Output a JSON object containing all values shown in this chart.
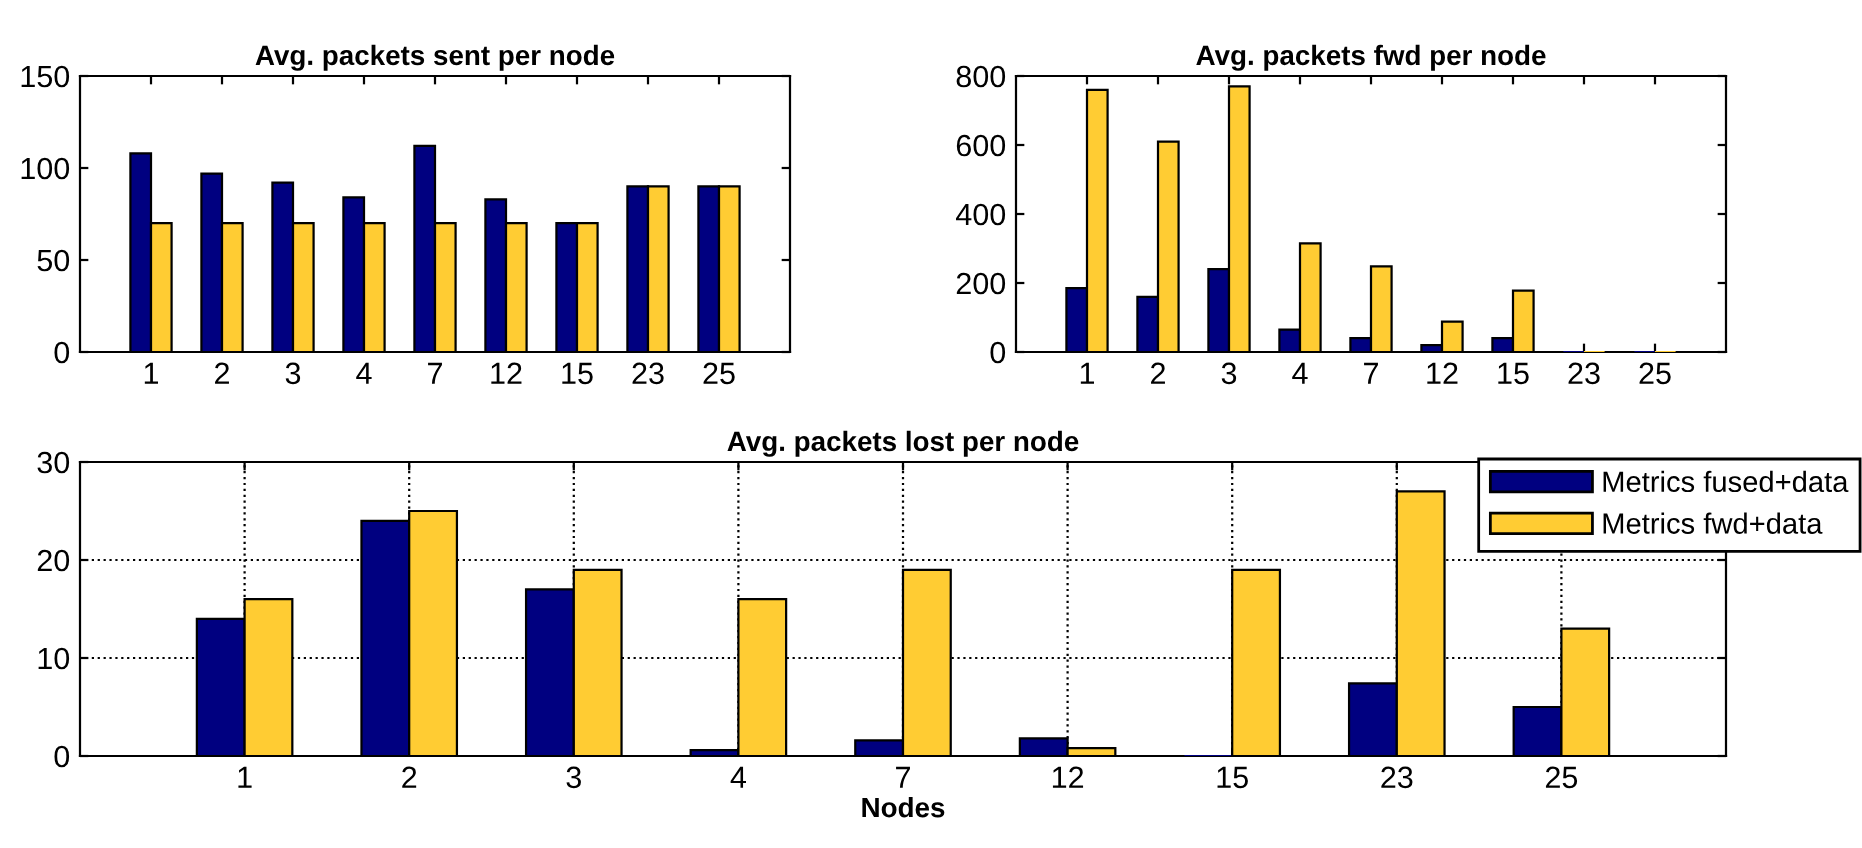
{
  "chart_data": [
    {
      "type": "bar",
      "title": "Avg. packets sent per node",
      "categories": [
        "1",
        "2",
        "3",
        "4",
        "7",
        "12",
        "15",
        "23",
        "25"
      ],
      "ylim": [
        0,
        150
      ],
      "yticks": [
        0,
        50,
        100,
        150
      ],
      "grid": false,
      "legend": false,
      "series": [
        {
          "color": "#000080",
          "values": [
            108,
            97,
            92,
            84,
            112,
            83,
            70,
            90,
            90
          ]
        },
        {
          "color": "#ffcc33",
          "values": [
            70,
            70,
            70,
            70,
            70,
            70,
            70,
            90,
            90
          ]
        }
      ]
    },
    {
      "type": "bar",
      "title": "Avg. packets fwd per node",
      "categories": [
        "1",
        "2",
        "3",
        "4",
        "7",
        "12",
        "15",
        "23",
        "25"
      ],
      "ylim": [
        0,
        800
      ],
      "yticks": [
        0,
        200,
        400,
        600,
        800
      ],
      "grid": false,
      "legend": false,
      "series": [
        {
          "color": "#000080",
          "values": [
            185,
            160,
            240,
            65,
            40,
            20,
            40,
            0,
            0
          ]
        },
        {
          "color": "#ffcc33",
          "values": [
            760,
            610,
            770,
            315,
            248,
            88,
            178,
            0,
            0
          ]
        }
      ]
    },
    {
      "type": "bar",
      "title": "Avg. packets lost per node",
      "xlabel": "Nodes",
      "categories": [
        "1",
        "2",
        "3",
        "4",
        "7",
        "12",
        "15",
        "23",
        "25"
      ],
      "ylim": [
        0,
        30
      ],
      "yticks": [
        0,
        10,
        20,
        30
      ],
      "grid": true,
      "legend": "top right",
      "series": [
        {
          "name": "Metrics fused+data",
          "color": "#000080",
          "values": [
            14,
            24,
            17,
            0.6,
            1.6,
            1.8,
            0,
            7.4,
            5
          ]
        },
        {
          "name": "Metrics fwd+data",
          "color": "#ffcc33",
          "values": [
            16,
            25,
            19,
            16,
            19,
            0.8,
            19,
            27,
            13
          ]
        }
      ]
    }
  ]
}
